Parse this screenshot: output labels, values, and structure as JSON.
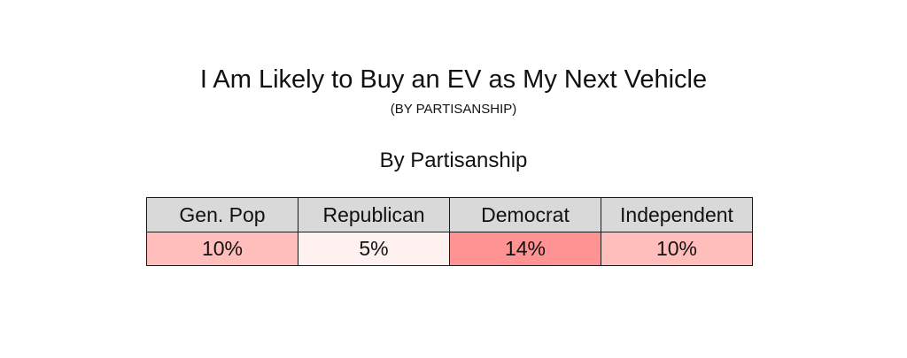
{
  "chart_data": {
    "type": "table",
    "title": "I Am Likely to Buy an EV as My Next Vehicle",
    "subtitle": "(BY PARTISANSHIP)",
    "table_title": "By Partisanship",
    "columns": [
      "Gen. Pop",
      "Republican",
      "Democrat",
      "Independent"
    ],
    "values": [
      10,
      5,
      14,
      10
    ],
    "value_labels": [
      "10%",
      "5%",
      "14%",
      "10%"
    ],
    "colors": {
      "header_background": "#d9d9d9",
      "heat_low": "#fff1f0",
      "heat_high": "#ff9393"
    }
  }
}
